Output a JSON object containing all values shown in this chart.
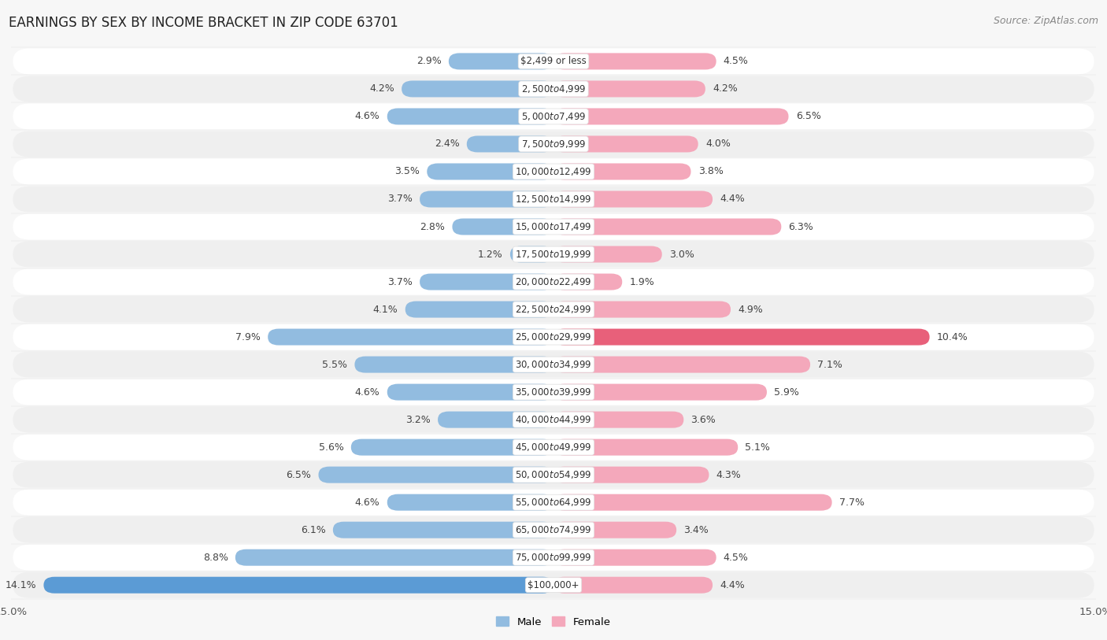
{
  "title": "EARNINGS BY SEX BY INCOME BRACKET IN ZIP CODE 63701",
  "source": "Source: ZipAtlas.com",
  "categories": [
    "$2,499 or less",
    "$2,500 to $4,999",
    "$5,000 to $7,499",
    "$7,500 to $9,999",
    "$10,000 to $12,499",
    "$12,500 to $14,999",
    "$15,000 to $17,499",
    "$17,500 to $19,999",
    "$20,000 to $22,499",
    "$22,500 to $24,999",
    "$25,000 to $29,999",
    "$30,000 to $34,999",
    "$35,000 to $39,999",
    "$40,000 to $44,999",
    "$45,000 to $49,999",
    "$50,000 to $54,999",
    "$55,000 to $64,999",
    "$65,000 to $74,999",
    "$75,000 to $99,999",
    "$100,000+"
  ],
  "male_values": [
    2.9,
    4.2,
    4.6,
    2.4,
    3.5,
    3.7,
    2.8,
    1.2,
    3.7,
    4.1,
    7.9,
    5.5,
    4.6,
    3.2,
    5.6,
    6.5,
    4.6,
    6.1,
    8.8,
    14.1
  ],
  "female_values": [
    4.5,
    4.2,
    6.5,
    4.0,
    3.8,
    4.4,
    6.3,
    3.0,
    1.9,
    4.9,
    10.4,
    7.1,
    5.9,
    3.6,
    5.1,
    4.3,
    7.7,
    3.4,
    4.5,
    4.4
  ],
  "male_color": "#92bce0",
  "female_color": "#f4a8bb",
  "male_highlight_color": "#5b9bd5",
  "female_highlight_color": "#e8607a",
  "male_label": "Male",
  "female_label": "Female",
  "xlim": 15.0,
  "row_light": "#efefef",
  "row_dark": "#e2e2e2",
  "bg_color": "#f7f7f7",
  "title_fontsize": 12,
  "source_fontsize": 9,
  "label_fontsize": 9,
  "tick_fontsize": 9.5,
  "cat_label_fontsize": 8.5
}
